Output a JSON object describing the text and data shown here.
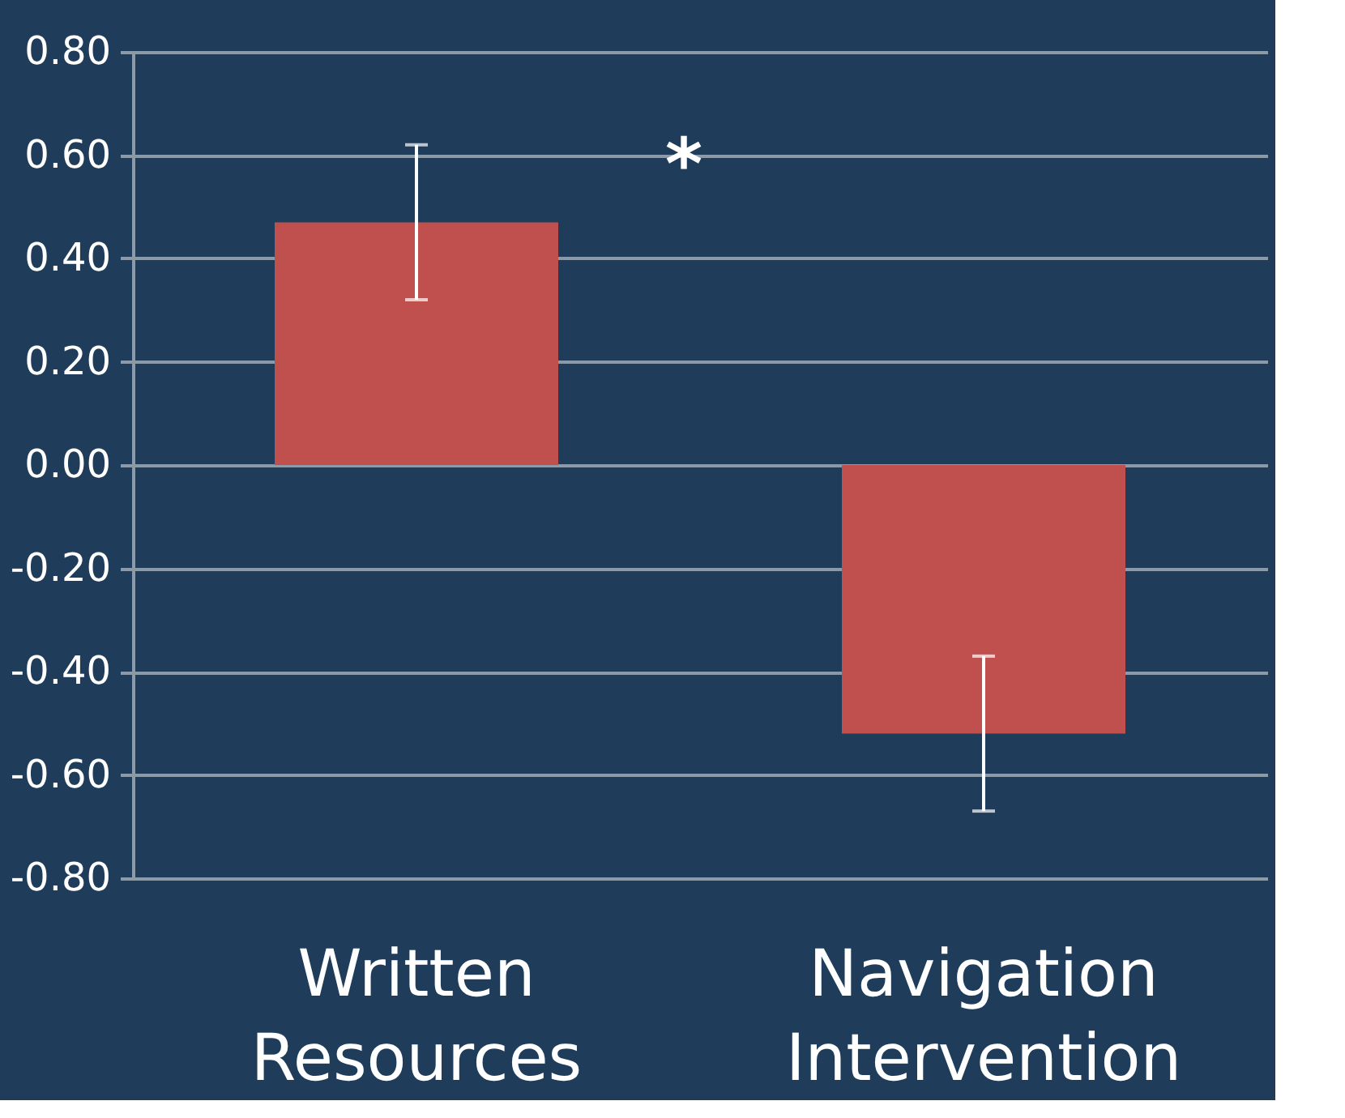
{
  "chart_data": {
    "type": "bar",
    "categories": [
      "Written Resources",
      "Navigation Intervention"
    ],
    "values": [
      0.47,
      -0.52
    ],
    "errors": [
      0.15,
      0.15
    ],
    "color": "#c0504d",
    "ylim": [
      -0.8,
      0.8
    ],
    "yticks": [
      {
        "value": -0.8,
        "label": "-0.80"
      },
      {
        "value": -0.6,
        "label": "-0.60"
      },
      {
        "value": -0.4,
        "label": "-0.40"
      },
      {
        "value": -0.2,
        "label": "-0.20"
      },
      {
        "value": 0,
        "label": "0.00"
      },
      {
        "value": 0.2,
        "label": "0.20"
      },
      {
        "value": 0.4,
        "label": "0.40"
      },
      {
        "value": 0.6,
        "label": "0.60"
      },
      {
        "value": 0.8,
        "label": "0.80"
      }
    ],
    "grid": "y",
    "annotations": [
      "*"
    ]
  }
}
